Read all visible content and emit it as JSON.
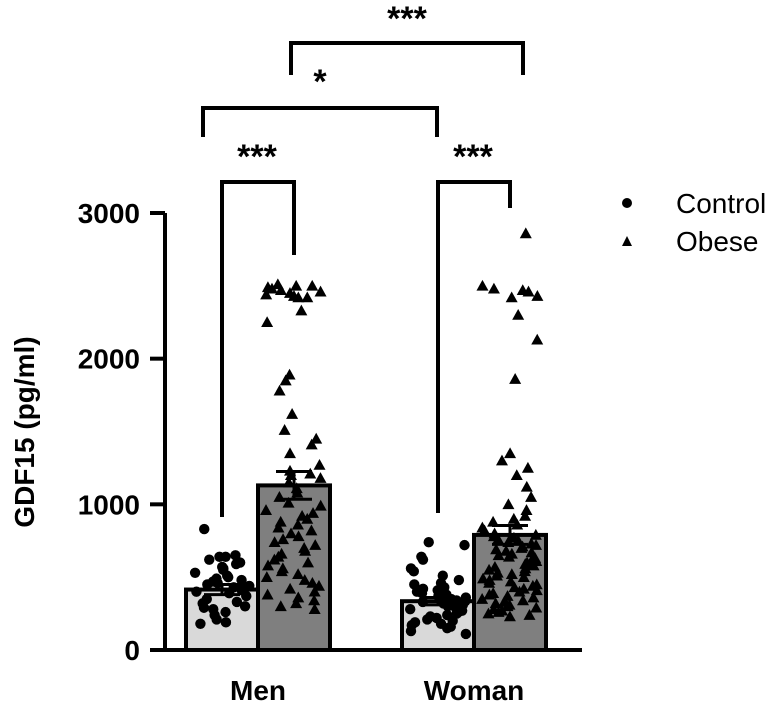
{
  "chart_data": {
    "type": "bar",
    "ylabel": "GDF15 (pg/ml)",
    "ylim": [
      0,
      3000
    ],
    "yticks": [
      0,
      1000,
      2000,
      3000
    ],
    "categories": [
      "Men",
      "Woman"
    ],
    "legend_position": "top-right",
    "grid": false,
    "series": [
      {
        "name": "Control",
        "marker": "circle",
        "color": "#d9d9d9",
        "means": [
          415,
          335
        ],
        "sem": [
          35,
          25
        ],
        "points": [
          [
            830,
            650,
            640,
            640,
            620,
            600,
            590,
            570,
            560,
            550,
            530,
            510,
            500,
            490,
            480,
            470,
            460,
            450,
            440,
            430,
            420,
            410,
            400,
            390,
            370,
            350,
            330,
            320,
            300,
            290,
            280,
            260,
            240,
            210,
            190,
            180
          ],
          [
            740,
            720,
            640,
            620,
            560,
            540,
            510,
            480,
            460,
            450,
            430,
            420,
            410,
            400,
            390,
            380,
            370,
            360,
            350,
            340,
            335,
            330,
            320,
            310,
            300,
            290,
            280,
            270,
            260,
            250,
            240,
            230,
            220,
            210,
            200,
            190,
            180,
            170,
            160,
            150,
            130,
            110
          ]
        ]
      },
      {
        "name": "Obese",
        "marker": "triangle",
        "color": "#7f7f7f",
        "means": [
          1130,
          790
        ],
        "sem": [
          95,
          65
        ],
        "points": [
          [
            2510,
            2500,
            2500,
            2490,
            2480,
            2470,
            2460,
            2450,
            2440,
            2430,
            2420,
            2420,
            2330,
            2250,
            1890,
            1850,
            1780,
            1620,
            1510,
            1450,
            1410,
            1350,
            1270,
            1230,
            1210,
            1200,
            1180,
            1150,
            1110,
            1080,
            1050,
            1010,
            990,
            960,
            940,
            920,
            900,
            880,
            860,
            840,
            820,
            800,
            780,
            760,
            740,
            720,
            700,
            680,
            660,
            640,
            620,
            600,
            580,
            560,
            540,
            520,
            500,
            480,
            460,
            440,
            420,
            400,
            380,
            360,
            340,
            320,
            300,
            280
          ],
          [
            2860,
            2500,
            2480,
            2470,
            2460,
            2430,
            2420,
            2300,
            2130,
            1860,
            1350,
            1300,
            1250,
            1200,
            1120,
            1050,
            1000,
            960,
            920,
            900,
            880,
            860,
            840,
            820,
            800,
            790,
            780,
            770,
            760,
            750,
            740,
            730,
            720,
            710,
            700,
            690,
            680,
            670,
            660,
            650,
            640,
            630,
            620,
            610,
            600,
            590,
            580,
            570,
            560,
            550,
            540,
            530,
            520,
            510,
            500,
            490,
            480,
            470,
            460,
            450,
            440,
            430,
            420,
            410,
            400,
            390,
            380,
            370,
            360,
            350,
            340,
            330,
            320,
            310,
            300,
            290,
            280,
            270,
            260,
            250,
            240,
            230
          ]
        ]
      }
    ],
    "annotations": [
      {
        "label": "***",
        "between": [
          "Men Control",
          "Men Obese"
        ]
      },
      {
        "label": "***",
        "between": [
          "Woman Control",
          "Woman Obese"
        ]
      },
      {
        "label": "*",
        "between": [
          "Men Control",
          "Woman Control"
        ]
      },
      {
        "label": "***",
        "between": [
          "Men Obese",
          "Woman Obese"
        ]
      }
    ]
  }
}
